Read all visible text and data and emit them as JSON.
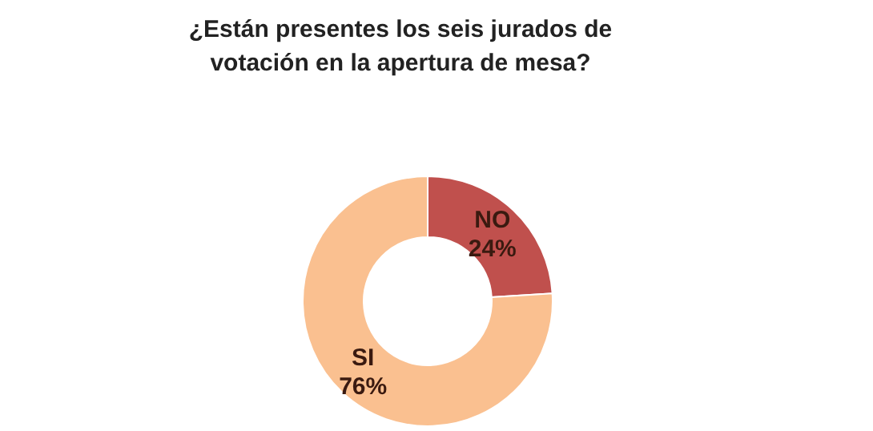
{
  "chart_data": {
    "type": "donut",
    "title": "¿Están presentes los seis jurados de votación en la apertura de mesa?",
    "categories": [
      "NO",
      "SI"
    ],
    "values": [
      24,
      76
    ],
    "colors": [
      "#c0504d",
      "#fac090"
    ],
    "value_labels": [
      "24%",
      "76%"
    ],
    "legend": false
  }
}
